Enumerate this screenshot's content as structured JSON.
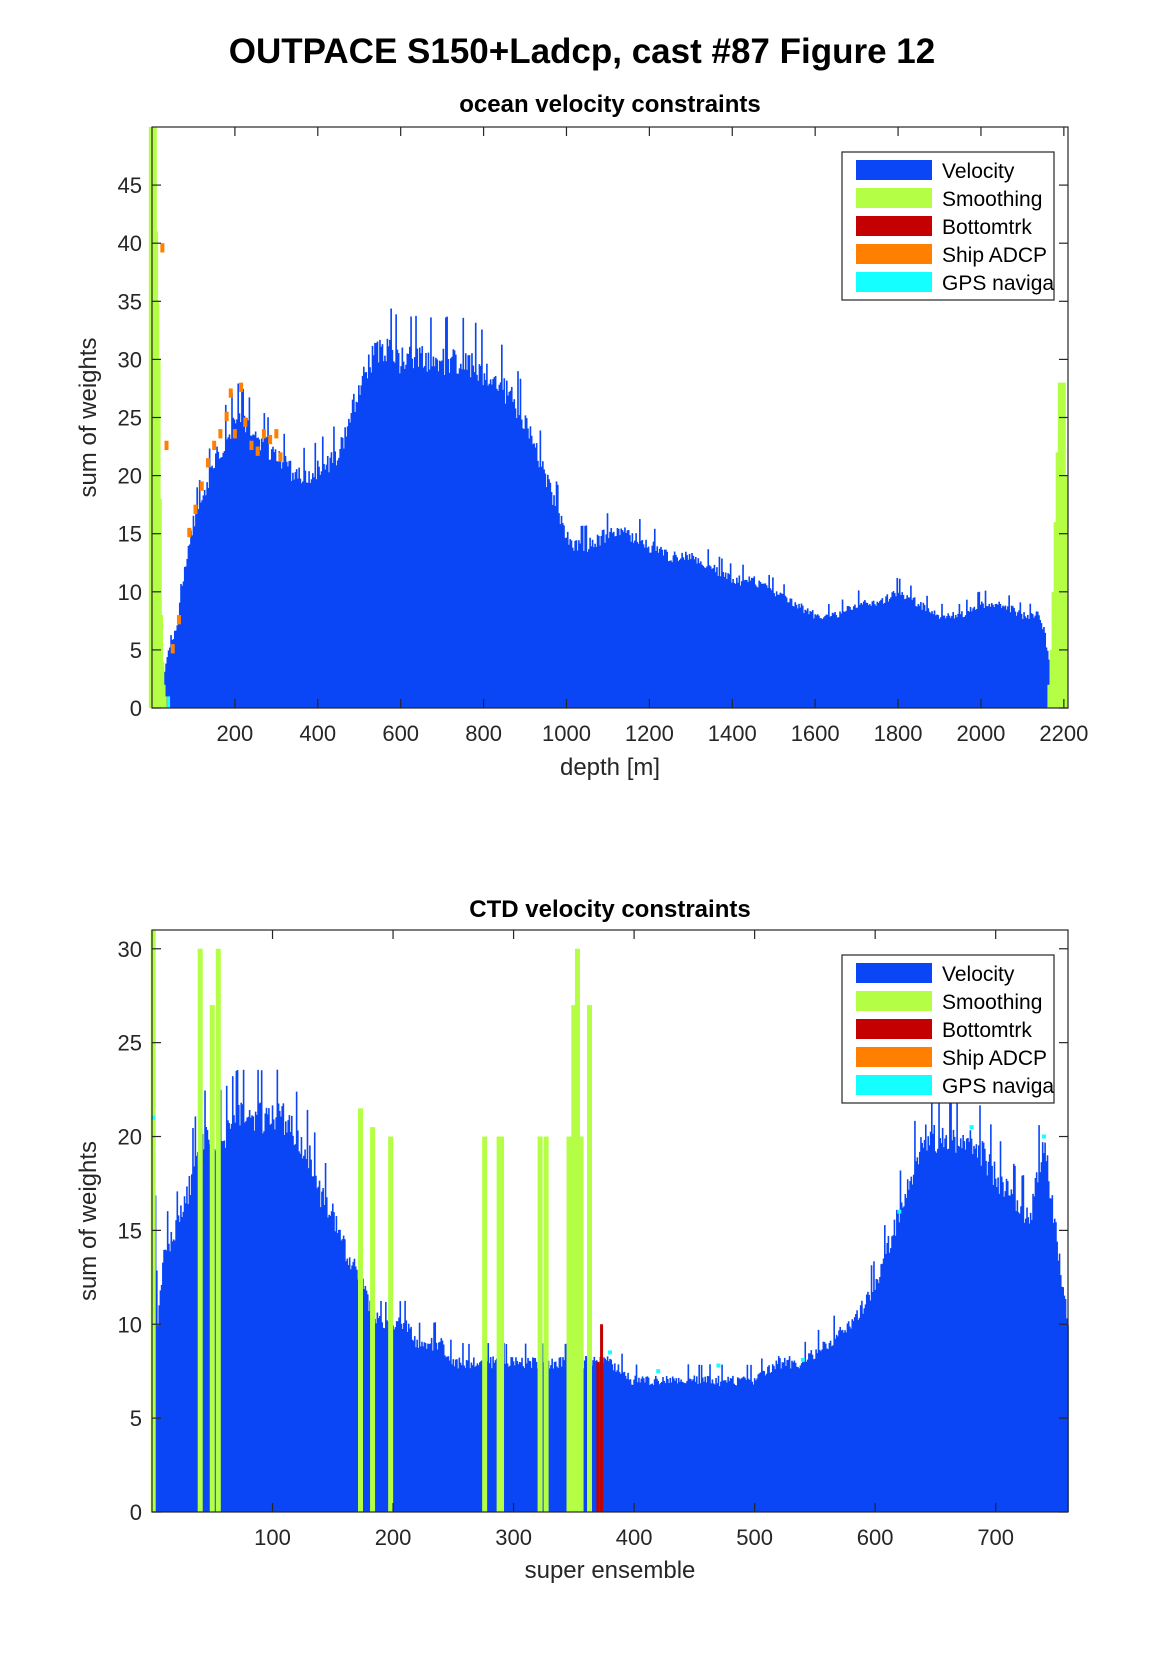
{
  "figure_title": "OUTPACE S150+Ladcp, cast #87  Figure 12",
  "legend_items": [
    {
      "label": "Velocity",
      "color": "#0a46f5"
    },
    {
      "label": "Smoothing",
      "color": "#b4ff46"
    },
    {
      "label": "Bottomtrk",
      "color": "#c40000"
    },
    {
      "label": "Ship ADCP",
      "color": "#ff8000"
    },
    {
      "label": "GPS naviga",
      "color": "#14ffff"
    }
  ],
  "chart_data": [
    {
      "type": "bar",
      "stacked": true,
      "title": "ocean velocity constraints",
      "xlabel": "depth [m]",
      "ylabel": "sum of weights",
      "xlim": [
        0,
        2210
      ],
      "ylim": [
        0,
        50
      ],
      "xticks": [
        200,
        400,
        600,
        800,
        1000,
        1200,
        1400,
        1600,
        1800,
        2000,
        2200
      ],
      "yticks": [
        0,
        5,
        10,
        15,
        20,
        25,
        30,
        35,
        40,
        45
      ],
      "grid": false,
      "legend_position": "top-right",
      "velocity_envelope": {
        "x": [
          10,
          25,
          40,
          60,
          80,
          100,
          130,
          160,
          190,
          210,
          230,
          260,
          290,
          320,
          350,
          380,
          420,
          450,
          480,
          500,
          530,
          560,
          600,
          640,
          680,
          720,
          760,
          800,
          840,
          880,
          920,
          950,
          980,
          1000,
          1020,
          1050,
          1100,
          1150,
          1200,
          1250,
          1300,
          1350,
          1400,
          1450,
          1500,
          1550,
          1600,
          1650,
          1700,
          1750,
          1800,
          1850,
          1900,
          1950,
          2000,
          2050,
          2100,
          2140,
          2160,
          2175,
          2190
        ],
        "y": [
          0,
          2,
          5,
          7,
          12,
          16,
          19,
          22,
          24,
          25,
          24,
          23,
          22,
          21,
          20,
          20,
          21,
          22,
          25,
          28,
          30,
          31,
          30,
          30,
          30,
          30,
          30,
          29,
          28,
          26,
          23,
          20,
          17,
          15,
          14,
          14,
          15,
          15,
          14,
          13,
          13,
          12,
          11,
          11,
          10,
          9,
          8,
          8,
          9,
          9,
          10,
          9,
          8,
          8,
          9,
          9,
          8,
          8,
          5,
          2,
          0
        ]
      },
      "smoothing": {
        "x": [
          2,
          5,
          8,
          11,
          14,
          17,
          20,
          23,
          26,
          2170,
          2175,
          2180,
          2185,
          2190,
          2195,
          2200
        ],
        "y": [
          50,
          41,
          35,
          30,
          18,
          8,
          4,
          2,
          1,
          2,
          5,
          10,
          16,
          22,
          28,
          20
        ]
      },
      "ship_adcp": {
        "x": [
          25,
          35,
          50,
          65,
          90,
          105,
          120,
          135,
          150,
          165,
          180,
          190,
          200,
          215,
          225,
          240,
          255,
          270,
          285,
          300,
          310
        ],
        "y": [
          40,
          23,
          5.5,
          8,
          15.5,
          17.5,
          19.5,
          21.5,
          23,
          24,
          25.5,
          27.5,
          24,
          28,
          25,
          23,
          22.5,
          24,
          23.5,
          24,
          22
        ]
      },
      "gps_navigation": {
        "x": [
          40
        ],
        "y": [
          1
        ]
      }
    },
    {
      "type": "bar",
      "stacked": true,
      "title": "CTD velocity constraints",
      "xlabel": "super ensemble",
      "ylabel": "sum of weights",
      "xlim": [
        0,
        760
      ],
      "ylim": [
        0,
        31
      ],
      "xticks": [
        100,
        200,
        300,
        400,
        500,
        600,
        700
      ],
      "yticks": [
        0,
        5,
        10,
        15,
        20,
        25,
        30
      ],
      "grid": false,
      "legend_position": "top-right",
      "velocity_envelope": {
        "x": [
          1,
          5,
          10,
          20,
          30,
          40,
          50,
          60,
          70,
          80,
          90,
          100,
          110,
          120,
          130,
          140,
          150,
          160,
          170,
          180,
          190,
          200,
          210,
          220,
          230,
          240,
          250,
          260,
          280,
          300,
          320,
          340,
          360,
          380,
          400,
          420,
          440,
          460,
          480,
          500,
          520,
          540,
          560,
          580,
          600,
          620,
          640,
          660,
          680,
          700,
          710,
          720,
          730,
          740,
          750,
          760
        ],
        "y": [
          20,
          10,
          14,
          15,
          17,
          20,
          20,
          20,
          21,
          21,
          21,
          21,
          21,
          20,
          19,
          17,
          16,
          14,
          13,
          11,
          10,
          10,
          10,
          9,
          9,
          9,
          8,
          8,
          8,
          8,
          8,
          8,
          8,
          8,
          7,
          7,
          7,
          7,
          7,
          7,
          8,
          8,
          9,
          10,
          12,
          16,
          20,
          20,
          20,
          18,
          17,
          16,
          16,
          20,
          15,
          10
        ]
      },
      "smoothing": {
        "x": [
          1,
          40,
          50,
          55,
          173,
          183,
          198,
          276,
          288,
          290,
          322,
          327,
          346,
          350,
          353,
          356,
          363
        ],
        "y": [
          31,
          30,
          27,
          30,
          21.5,
          20.5,
          20,
          20,
          20,
          20,
          20,
          20,
          20,
          27,
          30,
          20,
          27
        ]
      },
      "bottom_tracking": {
        "x": [
          370,
          373
        ],
        "y": [
          8,
          10
        ]
      },
      "gps_navigation": {
        "x": [
          1,
          380,
          420,
          470,
          540,
          620,
          680,
          740
        ],
        "y": [
          21,
          8.5,
          7.5,
          7.8,
          8.1,
          16,
          20.5,
          20
        ]
      }
    }
  ]
}
